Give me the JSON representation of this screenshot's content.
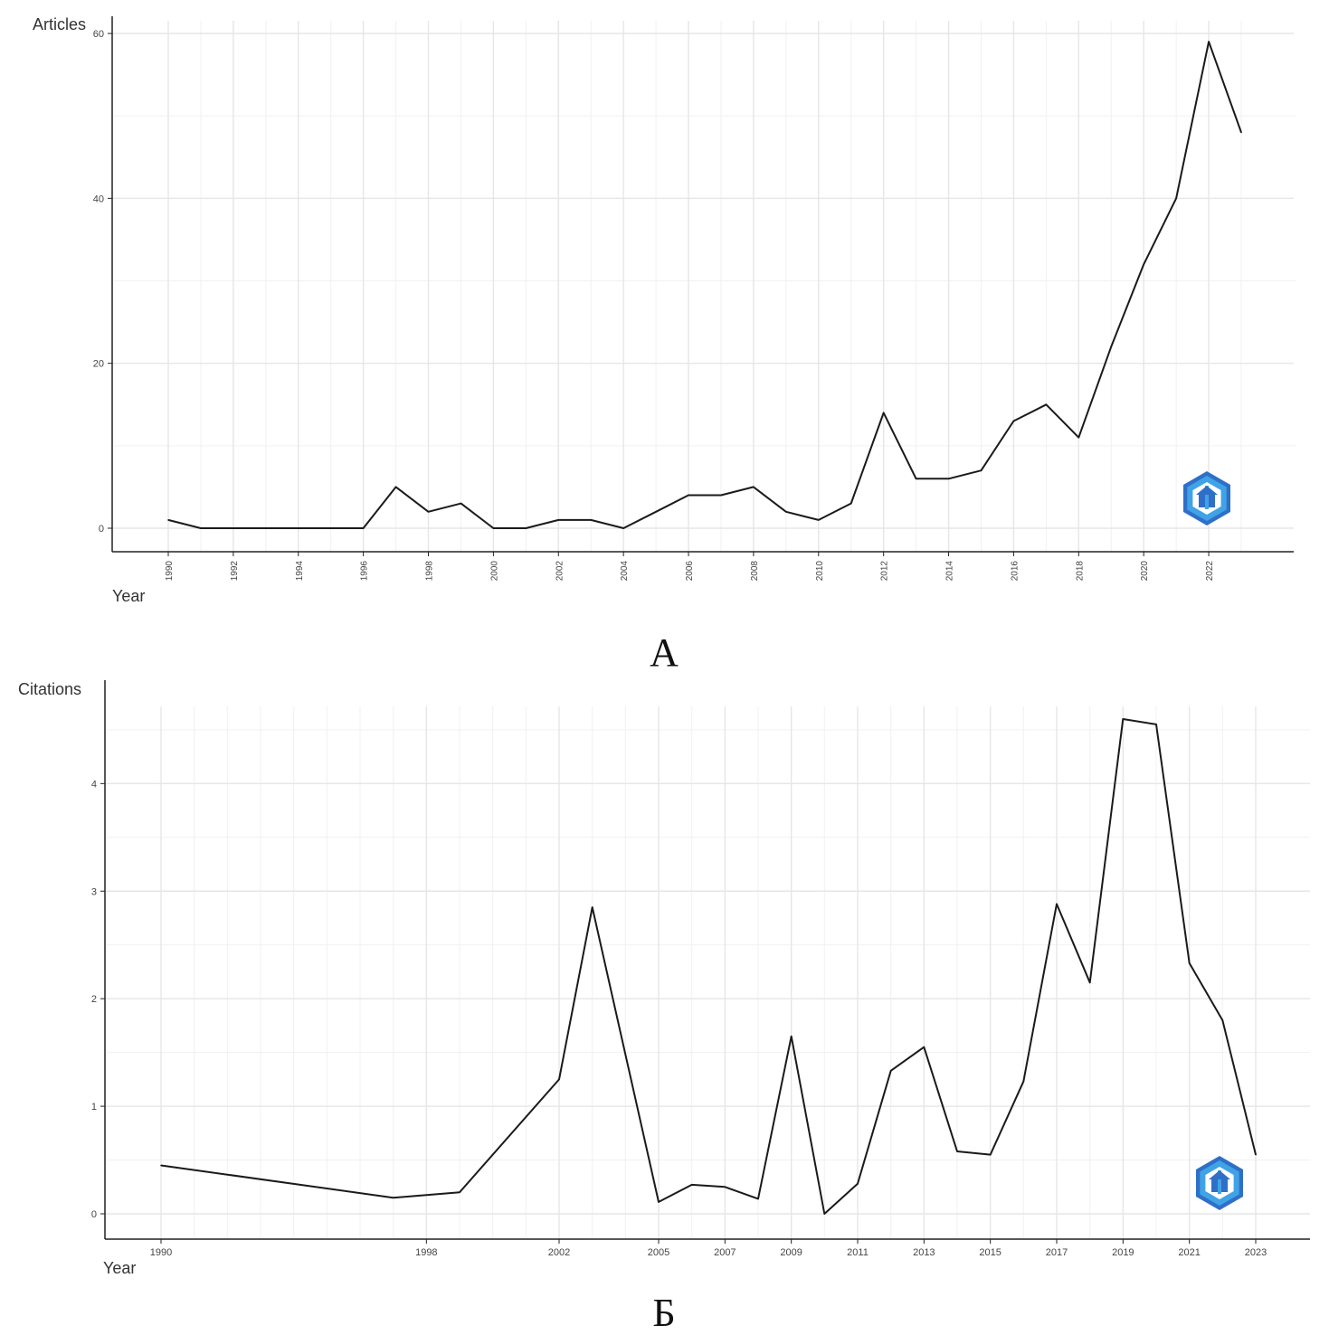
{
  "chart_data": [
    {
      "type": "line",
      "panel_label": "А",
      "ylabel": "Articles",
      "xlabel": "Year",
      "ylim": [
        0,
        60
      ],
      "y_ticks": [
        0,
        20,
        40,
        60
      ],
      "x_ticks": [
        1990,
        1992,
        1994,
        1996,
        1998,
        2000,
        2002,
        2004,
        2006,
        2008,
        2010,
        2012,
        2014,
        2016,
        2018,
        2020,
        2022
      ],
      "grid": true,
      "logo": "hexagon-logo-icon",
      "series": [
        {
          "x": [
            1990,
            1991,
            1992,
            1993,
            1994,
            1995,
            1996,
            1997,
            1998,
            1999,
            2000,
            2001,
            2002,
            2003,
            2004,
            2005,
            2006,
            2007,
            2008,
            2009,
            2010,
            2011,
            2012,
            2013,
            2014,
            2015,
            2016,
            2017,
            2018,
            2019,
            2020,
            2021,
            2022,
            2023
          ],
          "values": [
            1,
            0,
            0,
            0,
            0,
            0,
            0,
            5,
            2,
            3,
            0,
            0,
            1,
            1,
            0,
            2,
            4,
            4,
            5,
            2,
            1,
            3,
            14,
            6,
            6,
            7,
            13,
            15,
            11,
            22,
            32,
            40,
            59,
            48
          ]
        }
      ]
    },
    {
      "type": "line",
      "panel_label": "Б",
      "ylabel": "Citations",
      "xlabel": "Year",
      "ylim": [
        0,
        4.6
      ],
      "y_ticks": [
        0,
        1,
        2,
        3,
        4
      ],
      "x_ticks": [
        1990,
        1998,
        2002,
        2005,
        2007,
        2009,
        2011,
        2013,
        2015,
        2017,
        2019,
        2021,
        2023
      ],
      "grid": true,
      "logo": "hexagon-logo-icon",
      "series": [
        {
          "x": [
            1990,
            1997,
            1999,
            2002,
            2003,
            2005,
            2006,
            2007,
            2008,
            2009,
            2010,
            2011,
            2012,
            2013,
            2014,
            2015,
            2016,
            2017,
            2018,
            2019,
            2020,
            2021,
            2022,
            2023
          ],
          "values": [
            0.45,
            0.15,
            0.2,
            1.25,
            2.85,
            0.11,
            0.27,
            0.25,
            0.14,
            1.65,
            0.0,
            0.28,
            1.33,
            1.55,
            0.58,
            0.55,
            1.23,
            2.88,
            2.15,
            4.6,
            4.55,
            2.33,
            1.8,
            0.55
          ]
        }
      ]
    }
  ]
}
